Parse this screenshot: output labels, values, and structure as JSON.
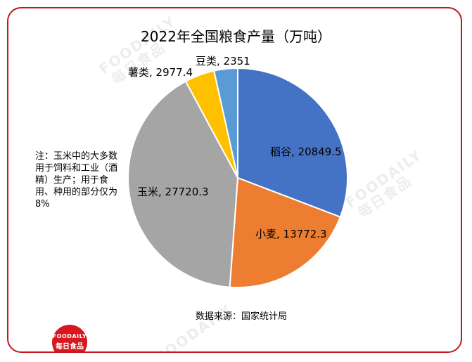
{
  "chart_data": {
    "type": "pie",
    "title": "2022年全国粮食产量（万吨）",
    "slices": [
      {
        "name": "稻谷",
        "value": 20849.5,
        "label": "稻谷, 20849.5",
        "color": "#4472c4"
      },
      {
        "name": "小麦",
        "value": 13772.3,
        "label": "小麦, 13772.3",
        "color": "#ed7d31"
      },
      {
        "name": "玉米",
        "value": 27720.3,
        "label": "玉米, 27720.3",
        "color": "#a5a5a5"
      },
      {
        "name": "薯类",
        "value": 2977.4,
        "label": "薯类, 2977.4",
        "color": "#ffc000"
      },
      {
        "name": "豆类",
        "value": 2351,
        "label": "豆类, 2351",
        "color": "#5b9bd5"
      }
    ],
    "start_angle_deg": 0,
    "direction": "clockwise"
  },
  "note": "注：玉米中的大多数用于饲料和工业（酒精）生产；用于食用、种用的部分仅为8%",
  "source": "数据来源：国家统计局",
  "watermark": {
    "text": "FOODAILY",
    "text_cn": "每日食品"
  },
  "logo": {
    "line1": "FOODAILY",
    "line2": "每日食品"
  },
  "colors": {
    "accent": "#c4161c"
  }
}
